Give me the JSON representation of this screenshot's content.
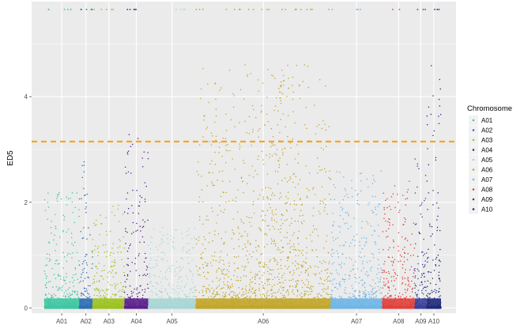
{
  "chart_data": {
    "type": "scatter",
    "title": "",
    "xlabel": "",
    "ylabel": "ED5",
    "ylim": [
      -0.1,
      5.8
    ],
    "yticks": [
      0,
      2,
      4
    ],
    "grid": true,
    "legend_title": "Chromosome",
    "legend_position": "right",
    "threshold": {
      "value": 3.15,
      "color": "#f5a623",
      "style": "dashed"
    },
    "max_value": 5.65,
    "series": [
      {
        "name": "A01",
        "color": "#3ec7a2",
        "x_range": [
          0.0,
          0.088
        ],
        "label_x": 0.044,
        "peak_y": 2.2,
        "top_points": 6
      },
      {
        "name": "A02",
        "color": "#2d6fb3",
        "x_range": [
          0.088,
          0.122
        ],
        "label_x": 0.105,
        "peak_y": 2.8,
        "top_points": 5
      },
      {
        "name": "A03",
        "color": "#9cc21f",
        "x_range": [
          0.122,
          0.202
        ],
        "label_x": 0.163,
        "peak_y": 2.0,
        "top_points": 5
      },
      {
        "name": "A04",
        "color": "#5a1f8c",
        "x_range": [
          0.202,
          0.262
        ],
        "label_x": 0.232,
        "peak_y": 3.4,
        "top_points": 5
      },
      {
        "name": "A05",
        "color": "#a9d6d4",
        "x_range": [
          0.262,
          0.382
        ],
        "label_x": 0.322,
        "peak_y": 1.5,
        "top_points": 4
      },
      {
        "name": "A06",
        "color": "#c2a62a",
        "x_range": [
          0.382,
          0.722
        ],
        "label_x": 0.552,
        "peak_y": 4.6,
        "top_points": 22
      },
      {
        "name": "A07",
        "color": "#6fb6e6",
        "x_range": [
          0.722,
          0.852
        ],
        "label_x": 0.787,
        "peak_y": 2.6,
        "top_points": 4
      },
      {
        "name": "A08",
        "color": "#e0413b",
        "x_range": [
          0.852,
          0.934
        ],
        "label_x": 0.893,
        "peak_y": 2.4,
        "top_points": 2
      },
      {
        "name": "A09",
        "color": "#3a3f9a",
        "x_range": [
          0.934,
          0.964
        ],
        "label_x": 0.949,
        "peak_y": 2.9,
        "top_points": 3
      },
      {
        "name": "A10",
        "color": "#1f2a7a",
        "x_range": [
          0.964,
          1.0
        ],
        "label_x": 0.982,
        "peak_y": 4.6,
        "top_points": 3
      }
    ]
  }
}
